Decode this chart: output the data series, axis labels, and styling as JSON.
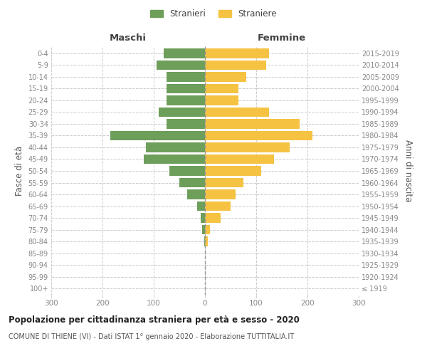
{
  "age_groups": [
    "100+",
    "95-99",
    "90-94",
    "85-89",
    "80-84",
    "75-79",
    "70-74",
    "65-69",
    "60-64",
    "55-59",
    "50-54",
    "45-49",
    "40-44",
    "35-39",
    "30-34",
    "25-29",
    "20-24",
    "15-19",
    "10-14",
    "5-9",
    "0-4"
  ],
  "birth_years": [
    "≤ 1919",
    "1920-1924",
    "1925-1929",
    "1930-1934",
    "1935-1939",
    "1940-1944",
    "1945-1949",
    "1950-1954",
    "1955-1959",
    "1960-1964",
    "1965-1969",
    "1970-1974",
    "1975-1979",
    "1980-1984",
    "1985-1989",
    "1990-1994",
    "1995-1999",
    "2000-2004",
    "2005-2009",
    "2010-2014",
    "2015-2019"
  ],
  "males": [
    0,
    0,
    0,
    0,
    2,
    5,
    8,
    15,
    35,
    50,
    70,
    120,
    115,
    185,
    75,
    90,
    75,
    75,
    75,
    95,
    80
  ],
  "females": [
    0,
    0,
    0,
    0,
    5,
    10,
    30,
    50,
    60,
    75,
    110,
    135,
    165,
    210,
    185,
    125,
    65,
    65,
    80,
    120,
    125
  ],
  "male_color": "#6d9e5a",
  "female_color": "#f5c242",
  "background_color": "#ffffff",
  "grid_color": "#cccccc",
  "title": "Popolazione per cittadinanza straniera per età e sesso - 2020",
  "subtitle": "COMUNE DI THIENE (VI) - Dati ISTAT 1° gennaio 2020 - Elaborazione TUTTITALIA.IT",
  "legend_male": "Stranieri",
  "legend_female": "Straniere",
  "xlabel_left": "Maschi",
  "xlabel_right": "Femmine",
  "ylabel_left": "Fasce di età",
  "ylabel_right": "Anni di nascita",
  "xlim": 300,
  "tick_color": "#888888",
  "axis_label_color": "#555555"
}
